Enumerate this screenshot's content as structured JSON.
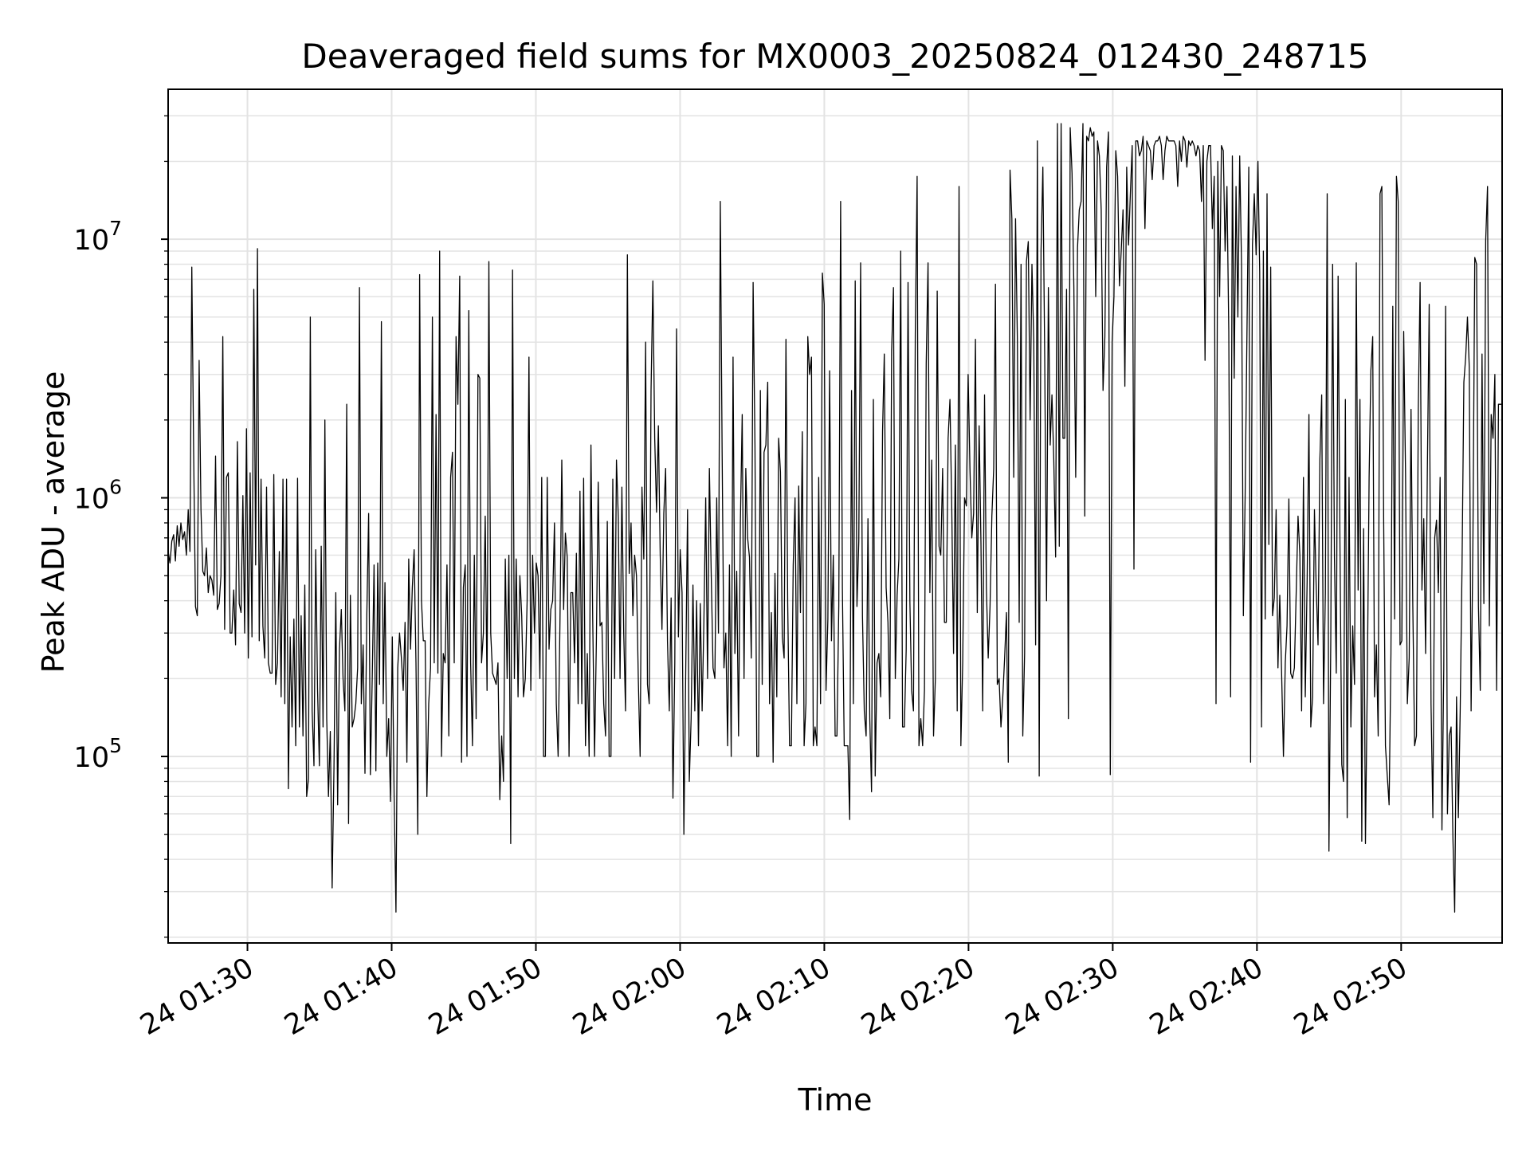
{
  "chart_data": {
    "type": "line",
    "title": "Deaveraged field sums for MX0003_20250824_012430_248715",
    "xlabel": "Time",
    "ylabel": "Peak ADU - average",
    "yscale": "log",
    "ylim": [
      19000,
      38000000
    ],
    "xlim": [
      "2025-08-24 01:24:30",
      "2025-08-24 02:57:00"
    ],
    "x_tick_labels": [
      "24 01:30",
      "24 01:40",
      "24 01:50",
      "24 02:00",
      "24 02:10",
      "24 02:20",
      "24 02:30",
      "24 02:40",
      "24 02:50"
    ],
    "y_tick_labels": [
      {
        "base": "10",
        "exp": "5"
      },
      {
        "base": "10",
        "exp": "6"
      },
      {
        "base": "10",
        "exp": "7"
      }
    ],
    "grid": true,
    "legend": "none",
    "line_color": "#000000",
    "series": [
      {
        "x_start": "2025-08-24 01:24:30",
        "x_end": "2025-08-24 02:57:00",
        "values": [
          620000,
          560000,
          680000,
          720000,
          570000,
          780000,
          650000,
          800000,
          690000,
          740000,
          600000,
          900000,
          620000,
          7800000,
          1500000,
          380000,
          350000,
          3400000,
          900000,
          520000,
          500000,
          640000,
          430000,
          500000,
          480000,
          420000,
          1450000,
          370000,
          390000,
          500000,
          4200000,
          310000,
          1200000,
          1250000,
          300000,
          300000,
          440000,
          270000,
          1650000,
          390000,
          360000,
          1020000,
          300000,
          1850000,
          240000,
          1250000,
          290000,
          6400000,
          550000,
          9200000,
          280000,
          1180000,
          320000,
          240000,
          1100000,
          230000,
          210000,
          210000,
          1230000,
          190000,
          230000,
          620000,
          170000,
          1180000,
          160000,
          1180000,
          75000,
          290000,
          130000,
          340000,
          110000,
          1190000,
          130000,
          350000,
          120000,
          460000,
          70000,
          82000,
          5000000,
          150000,
          92000,
          630000,
          180000,
          92000,
          650000,
          130000,
          2000000,
          140000,
          70000,
          125000,
          31000,
          90000,
          430000,
          65000,
          260000,
          370000,
          200000,
          150000,
          2300000,
          55000,
          420000,
          130000,
          140000,
          160000,
          220000,
          6500000,
          160000,
          270000,
          86000,
          350000,
          870000,
          85000,
          200000,
          550000,
          88000,
          560000,
          190000,
          4800000,
          160000,
          470000,
          100000,
          140000,
          67000,
          290000,
          70000,
          25000,
          220000,
          300000,
          240000,
          180000,
          330000,
          95000,
          580000,
          260000,
          450000,
          630000,
          230000,
          50000,
          7300000,
          400000,
          280000,
          280000,
          70000,
          160000,
          220000,
          5000000,
          230000,
          2100000,
          210000,
          9000000,
          100000,
          250000,
          230000,
          550000,
          120000,
          1200000,
          1500000,
          230000,
          4200000,
          2300000,
          7200000,
          95000,
          450000,
          550000,
          100000,
          5300000,
          230000,
          110000,
          600000,
          140000,
          3000000,
          2900000,
          230000,
          300000,
          850000,
          180000,
          8200000,
          300000,
          210000,
          200000,
          190000,
          230000,
          68000,
          120000,
          80000,
          580000,
          200000,
          600000,
          46000,
          7600000,
          200000,
          580000,
          170000,
          500000,
          350000,
          170000,
          200000,
          400000,
          3500000,
          180000,
          600000,
          300000,
          560000,
          500000,
          200000,
          1200000,
          100000,
          100000,
          1200000,
          260000,
          370000,
          400000,
          800000,
          160000,
          100000,
          330000,
          1400000,
          370000,
          730000,
          590000,
          100000,
          430000,
          430000,
          230000,
          610000,
          160000,
          1060000,
          160000,
          1190000,
          110000,
          250000,
          100000,
          1600000,
          340000,
          100000,
          280000,
          1150000,
          320000,
          330000,
          160000,
          120000,
          810000,
          100000,
          100000,
          1180000,
          200000,
          1400000,
          840000,
          200000,
          1100000,
          300000,
          150000,
          8700000,
          510000,
          800000,
          350000,
          600000,
          500000,
          200000,
          100000,
          1100000,
          580000,
          4000000,
          190000,
          160000,
          2600000,
          6900000,
          1700000,
          880000,
          1900000,
          600000,
          310000,
          870000,
          1300000,
          280000,
          150000,
          410000,
          69000,
          230000,
          4500000,
          290000,
          630000,
          430000,
          50000,
          210000,
          900000,
          80000,
          140000,
          460000,
          150000,
          400000,
          110000,
          390000,
          150000,
          330000,
          1000000,
          200000,
          1300000,
          510000,
          220000,
          200000,
          1000000,
          300000,
          14000000,
          1500000,
          220000,
          300000,
          110000,
          550000,
          100000,
          3500000,
          250000,
          520000,
          120000,
          800000,
          2100000,
          200000,
          1300000,
          700000,
          590000,
          240000,
          6800000,
          1600000,
          100000,
          100000,
          2600000,
          190000,
          1500000,
          1600000,
          2800000,
          160000,
          360000,
          95000,
          510000,
          170000,
          1700000,
          1260000,
          290000,
          240000,
          4100000,
          390000,
          110000,
          110000,
          550000,
          1000000,
          160000,
          1110000,
          360000,
          1800000,
          110000,
          160000,
          4200000,
          3000000,
          3500000,
          110000,
          130000,
          110000,
          1200000,
          160000,
          7400000,
          5600000,
          180000,
          340000,
          3100000,
          280000,
          600000,
          120000,
          120000,
          380000,
          14000000,
          450000,
          110000,
          110000,
          110000,
          57000,
          2600000,
          160000,
          6900000,
          380000,
          680000,
          8100000,
          350000,
          150000,
          120000,
          830000,
          140000,
          73000,
          2400000,
          84000,
          230000,
          250000,
          170000,
          1800000,
          3600000,
          450000,
          330000,
          140000,
          3700000,
          6500000,
          200000,
          420000,
          580000,
          9000000,
          130000,
          130000,
          260000,
          6800000,
          400000,
          180000,
          150000,
          4300000,
          17500000,
          110000,
          140000,
          110000,
          180000,
          3300000,
          8100000,
          430000,
          1400000,
          120000,
          200000,
          6300000,
          650000,
          600000,
          1300000,
          330000,
          330000,
          1700000,
          2400000,
          900000,
          250000,
          1600000,
          150000,
          16000000,
          110000,
          230000,
          1000000,
          930000,
          3000000,
          1300000,
          700000,
          870000,
          4100000,
          360000,
          1900000,
          670000,
          150000,
          2500000,
          450000,
          240000,
          380000,
          850000,
          1300000,
          6700000,
          190000,
          200000,
          130000,
          170000,
          240000,
          360000,
          95000,
          18500000,
          12000000,
          1200000,
          12000000,
          4100000,
          330000,
          8000000,
          120000,
          250000,
          8200000,
          9800000,
          2000000,
          8000000,
          4000000,
          270000,
          24000000,
          84000,
          9000000,
          19000000,
          3500000,
          400000,
          6500000,
          1600000,
          2500000,
          1400000,
          590000,
          28000000,
          650000,
          28000000,
          1700000,
          1700000,
          6400000,
          140000,
          27000000,
          18000000,
          6500000,
          1200000,
          9300000,
          13000000,
          14000000,
          28000000,
          850000,
          25000000,
          24000000,
          27000000,
          25000000,
          26000000,
          6000000,
          24000000,
          21000000,
          13000000,
          2600000,
          4200000,
          19000000,
          26000000,
          85000,
          4000000,
          6000000,
          22000000,
          17500000,
          6600000,
          9000000,
          13000000,
          2700000,
          19000000,
          9500000,
          15000000,
          23000000,
          530000,
          24000000,
          24000000,
          21000000,
          22000000,
          25000000,
          11000000,
          24000000,
          23000000,
          22000000,
          17000000,
          23000000,
          24000000,
          24000000,
          25000000,
          23000000,
          17000000,
          22000000,
          25000000,
          24000000,
          24000000,
          24000000,
          24000000,
          23000000,
          16000000,
          24000000,
          20000000,
          25000000,
          24000000,
          19000000,
          24000000,
          23000000,
          24000000,
          23000000,
          21000000,
          23000000,
          22000000,
          14000000,
          23000000,
          3400000,
          20000000,
          23000000,
          23000000,
          11000000,
          17500000,
          160000,
          20000000,
          6000000,
          23000000,
          22000000,
          9000000,
          16000000,
          4400000,
          170000,
          21000000,
          2900000,
          16000000,
          5000000,
          21000000,
          8000000,
          350000,
          1000000,
          4300000,
          19000000,
          95000,
          9500000,
          15000000,
          8700000,
          20000000,
          7500000,
          130000,
          9000000,
          340000,
          15000000,
          660000,
          7800000,
          350000,
          410000,
          900000,
          220000,
          420000,
          210000,
          100000,
          230000,
          320000,
          990000,
          210000,
          200000,
          220000,
          430000,
          850000,
          600000,
          150000,
          1200000,
          170000,
          470000,
          2100000,
          130000,
          170000,
          900000,
          450000,
          270000,
          1400000,
          2500000,
          160000,
          430000,
          15000000,
          43000,
          280000,
          8000000,
          590000,
          210000,
          7200000,
          670000,
          93000,
          80000,
          2400000,
          58000,
          1200000,
          130000,
          320000,
          190000,
          8100000,
          440000,
          2400000,
          47000,
          760000,
          46000,
          190000,
          1200000,
          3100000,
          4200000,
          170000,
          270000,
          120000,
          15000000,
          16000000,
          800000,
          110000,
          84000,
          65000,
          250000,
          5500000,
          340000,
          17500000,
          14000000,
          270000,
          280000,
          4400000,
          1250000,
          160000,
          240000,
          2200000,
          390000,
          110000,
          120000,
          2200000,
          6800000,
          440000,
          830000,
          250000,
          1300000,
          5600000,
          160000,
          58000,
          700000,
          820000,
          430000,
          1200000,
          52000,
          220000,
          5500000,
          60000,
          120000,
          130000,
          48000,
          25000,
          170000,
          58000,
          150000,
          540000,
          2800000,
          3500000,
          5000000,
          3200000,
          150000,
          700000,
          8500000,
          8000000,
          380000,
          180000,
          3600000,
          390000,
          9900000,
          16000000,
          320000,
          2100000,
          1700000,
          3000000,
          180000,
          2300000,
          2300000,
          2300000
        ]
      }
    ]
  }
}
